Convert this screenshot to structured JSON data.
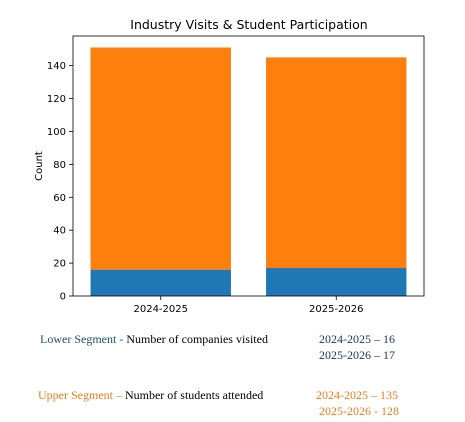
{
  "chart_data": {
    "type": "bar",
    "stacked": true,
    "title": "Industry Visits & Student Participation",
    "xlabel": "",
    "ylabel": "Count",
    "categories": [
      "2024-2025",
      "2025-2026"
    ],
    "ylim": [
      0,
      158
    ],
    "yticks": [
      0,
      20,
      40,
      60,
      80,
      100,
      120,
      140
    ],
    "grid": false,
    "series": [
      {
        "values": [
          16,
          17
        ],
        "color": "#1f77b4"
      },
      {
        "values": [
          135,
          128
        ],
        "color": "#ff7f0e"
      }
    ]
  },
  "notes": {
    "lower": {
      "title": "Lower Segment",
      "separator": " - ",
      "desc": "Number of companies visited",
      "line1": "2024-2025 – 16",
      "line2": "2025-2026 – 17",
      "title_color": "#1f4e79",
      "value_color": "#1f3864"
    },
    "upper": {
      "title": "Upper Segment",
      "separator": " – ",
      "desc": "Number of students attended",
      "line1": "2024-2025 – 135",
      "line2": "2025-2026 - 128",
      "title_color": "#e67e22",
      "value_color": "#e67e22"
    }
  }
}
